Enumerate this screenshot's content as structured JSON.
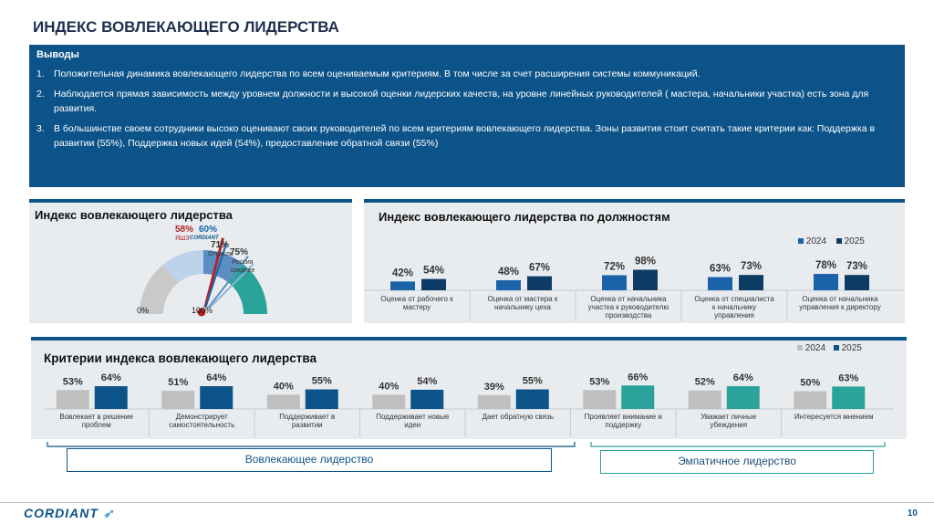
{
  "page": {
    "title": "ИНДЕКС ВОВЛЕКАЮЩЕГО ЛИДЕРСТВА",
    "page_number": "10"
  },
  "findings": {
    "heading": "Выводы",
    "items": [
      {
        "num": "1.",
        "text": "Положительная динамика вовлекающего лидерства по всем оцениваемым критериям.  В том числе за счет расширения системы коммуникаций."
      },
      {
        "num": "2.",
        "text": "Наблюдается прямая зависимость между уровнем должности и высокой оценки лидерских качеств, на уровне линейных руководителей ( мастера, начальники участка) есть зона для развития."
      },
      {
        "num": "3.",
        "text": "В большинстве своем сотрудники высоко оценивают своих руководителей по всем критериям вовлекающего лидерства. Зоны развития стоит считать такие критерии как: Поддержка в развитии (55%), Поддержка новых идей (54%), предоставление обратной связи (55%)"
      }
    ]
  },
  "gauge": {
    "title": "Индекс вовлекающего лидерства",
    "min_label": "0%",
    "max_label": "100%",
    "markers": [
      {
        "label": "58%",
        "sub": "ЯШЗ",
        "value": 58,
        "color": "#b02428"
      },
      {
        "label": "60%",
        "sub": "",
        "value": 60,
        "color": "#1a63a8"
      },
      {
        "label": "71%",
        "sub": "Отрасль",
        "value": 71,
        "color": "#5a8fc2"
      },
      {
        "label": "75%",
        "sub": "Россия среднее",
        "value": 75,
        "color": "#8fb3d9"
      }
    ],
    "logo_text": "CORDIANT"
  },
  "positions": {
    "title": "Индекс вовлекающего лидерства по должностям",
    "legend": [
      "2024",
      "2025"
    ]
  },
  "criteria": {
    "title": "Критерии индекса вовлекающего лидерства",
    "legend": [
      "2024",
      "2025"
    ],
    "group1_label": "Вовлекающее лидерство",
    "group2_label": "Эмпатичное лидерство"
  },
  "footer": {
    "logo": "CORDIANT"
  },
  "colors": {
    "dark_blue": "#0c5389",
    "light_blue": "#1a63a8",
    "teal": "#2aa39a",
    "gray": "#bfbfbf",
    "red": "#b02428"
  },
  "chart_data": [
    {
      "type": "bar",
      "title": "Индекс вовлекающего лидерства по должностям",
      "categories": [
        "Оценка от рабочего к мастеру",
        "Оценка от мастера к начальнику цеха",
        "Оценка от начальника участка к руководителю производства",
        "Оценка от специалиста к начальнику управления",
        "Оценка от начальника управления к директору"
      ],
      "series": [
        {
          "name": "2024",
          "values": [
            42,
            48,
            72,
            63,
            78
          ],
          "labels": [
            "42%",
            "48%",
            "72%",
            "63%",
            "78%"
          ]
        },
        {
          "name": "2025",
          "values": [
            54,
            67,
            98,
            73,
            73
          ],
          "labels": [
            "54%",
            "67%",
            "98%",
            "73%",
            "73%"
          ]
        }
      ],
      "ylim": [
        0,
        100
      ],
      "legend": "top-right"
    },
    {
      "type": "bar",
      "title": "Критерии индекса вовлекающего лидерства",
      "categories": [
        "Вовлекает в решение проблем",
        "Демонстрирует самостоятельность",
        "Поддерживает в развитии",
        "Поддерживает новые идеи",
        "Дает обратную связь",
        "Проявляет внимание и поддержку",
        "Уважает личные убеждения",
        "Интересуется мнением"
      ],
      "series": [
        {
          "name": "2024",
          "values": [
            53,
            51,
            40,
            40,
            39,
            53,
            52,
            50
          ],
          "labels": [
            "53%",
            "51%",
            "40%",
            "40%",
            "39%",
            "53%",
            "52%",
            "50%"
          ]
        },
        {
          "name": "2025",
          "values": [
            64,
            64,
            55,
            54,
            55,
            66,
            64,
            63
          ],
          "labels": [
            "64%",
            "64%",
            "55%",
            "54%",
            "55%",
            "66%",
            "64%",
            "63%"
          ]
        }
      ],
      "ylim": [
        0,
        100
      ],
      "legend": "top-right"
    }
  ]
}
